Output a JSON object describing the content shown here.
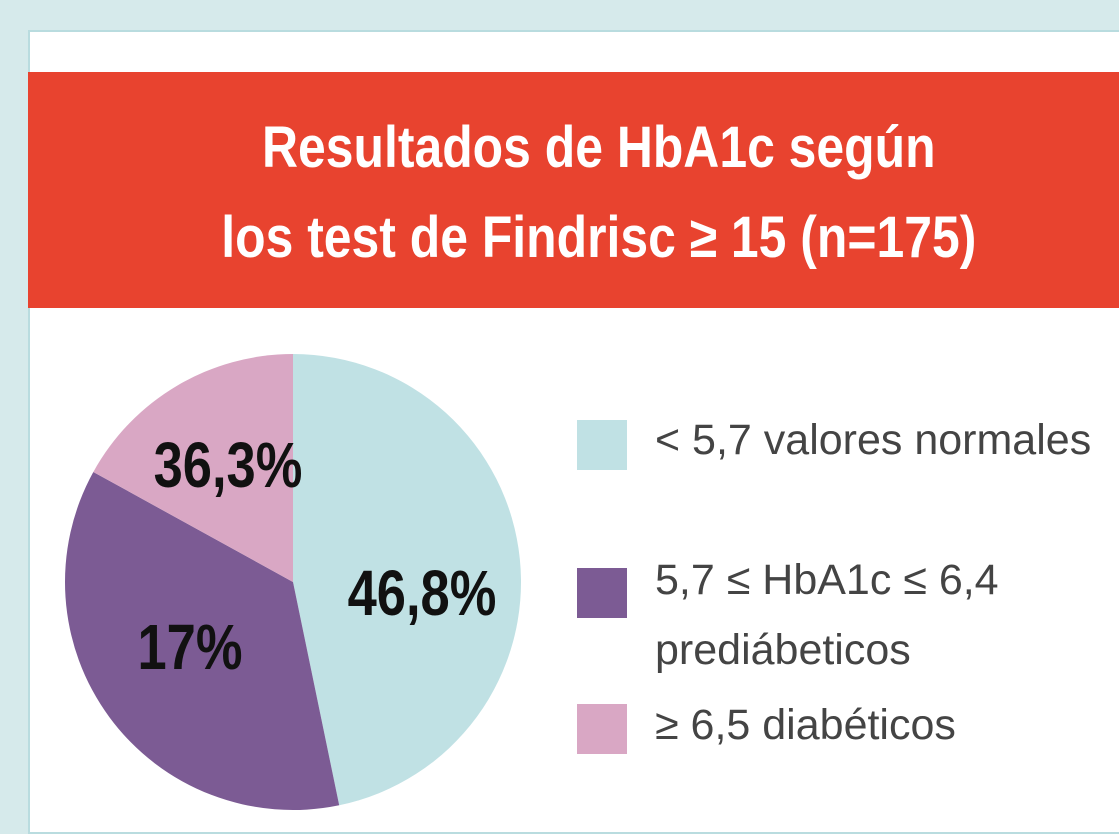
{
  "chart_data": {
    "type": "pie",
    "title": [
      "Resultados de HbA1c según",
      "los test de Findrisc ≥ 15 (n=175)"
    ],
    "categories": [
      "< 5,7 valores normales",
      "5,7 ≤ HbA1c ≤ 6,4 prediábeticos",
      "≥ 6,5 diabéticos"
    ],
    "values": [
      46.8,
      36.3,
      17
    ],
    "value_labels": [
      "46,8%",
      "36,3%",
      "17%"
    ],
    "colors": [
      "#c0e1e4",
      "#7c5b94",
      "#d9a7c4"
    ]
  }
}
